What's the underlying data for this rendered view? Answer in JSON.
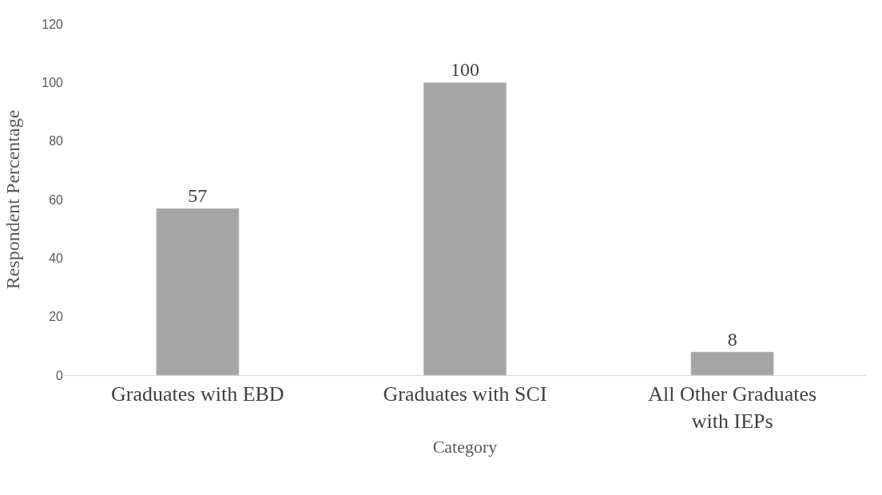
{
  "chart_data": {
    "type": "bar",
    "xlabel": "Category",
    "ylabel": "Respondent Percentage",
    "categories": [
      "Graduates with EBD",
      "Graduates with SCI",
      "All Other Graduates with IEPs"
    ],
    "values": [
      57,
      100,
      8
    ],
    "color": "#a5a5a5",
    "data_labels": true,
    "ylim": [
      0,
      120
    ],
    "yticks": [
      0,
      20,
      40,
      60,
      80,
      100,
      120
    ],
    "legend": false
  }
}
